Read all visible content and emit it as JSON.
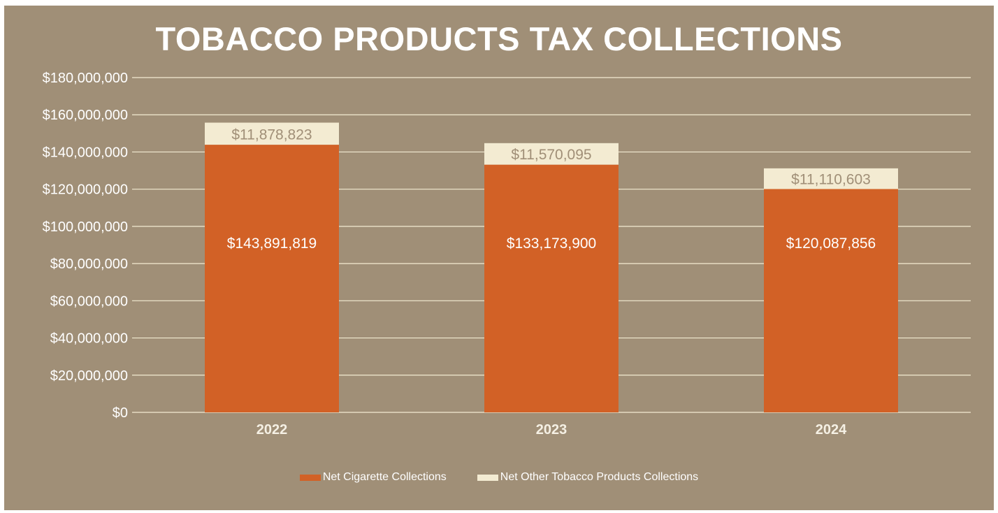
{
  "chart_data": {
    "type": "bar",
    "stacked": true,
    "title": "TOBACCO PRODUCTS TAX COLLECTIONS",
    "categories": [
      "2022",
      "2023",
      "2024"
    ],
    "series": [
      {
        "name": "Net Cigarette Collections",
        "color": "#d26126",
        "values": [
          143891819,
          133173900,
          120087856
        ],
        "labels": [
          "$143,891,819",
          "$133,173,900",
          "$120,087,856"
        ]
      },
      {
        "name": "Net Other Tobacco Products Collections",
        "color": "#f3ebd2",
        "values": [
          11878823,
          11570095,
          11110603
        ],
        "labels": [
          "$11,878,823",
          "$11,570,095",
          "$11,110,603"
        ]
      }
    ],
    "ylim": [
      0,
      180000000
    ],
    "yticks": [
      0,
      20000000,
      40000000,
      60000000,
      80000000,
      100000000,
      120000000,
      140000000,
      160000000,
      180000000
    ],
    "ytick_labels": [
      "$0",
      "$20,000,000",
      "$40,000,000",
      "$60,000,000",
      "$80,000,000",
      "$100,000,000",
      "$120,000,000",
      "$140,000,000",
      "$160,000,000",
      "$180,000,000"
    ],
    "grid": true,
    "legend_position": "bottom",
    "background_color": "#a08f77",
    "gridline_color": "#f3ebd2"
  }
}
